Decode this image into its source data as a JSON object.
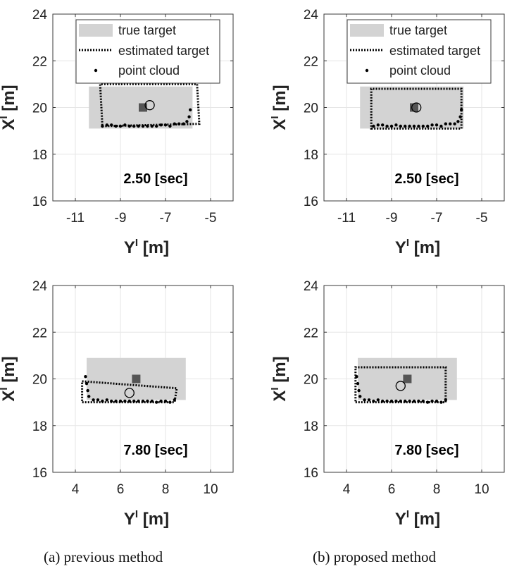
{
  "legend": {
    "true_target": "true target",
    "estimated_target": "estimated target",
    "point_cloud": "point cloud"
  },
  "axes": {
    "xlabel_main": "Y",
    "xlabel_sup": "I",
    "xlabel_unit": "[m]",
    "ylabel_main": "X",
    "ylabel_sup": "I",
    "ylabel_unit": "[m]"
  },
  "captions": {
    "left": "(a)  previous  method",
    "right": "(b)  proposed  method"
  },
  "colors": {
    "true_target_fill": "#d3d3d3",
    "center_marker": "#555555",
    "point_cloud": "#000000",
    "estimated_outline": "#000000"
  },
  "chart_data": [
    {
      "type": "scatter",
      "title": "2.50 [sec]",
      "xlim": [
        -12,
        -4
      ],
      "ylim": [
        16,
        24
      ],
      "xticks": [
        -11,
        -9,
        -7,
        -5
      ],
      "yticks": [
        16,
        18,
        20,
        22,
        24
      ],
      "show_legend": true,
      "true_target": [
        [
          -10.4,
          19.1
        ],
        [
          -5.8,
          19.1
        ],
        [
          -5.8,
          20.9
        ],
        [
          -10.4,
          20.9
        ]
      ],
      "estimated_target": [
        [
          -9.8,
          19.2
        ],
        [
          -5.5,
          19.3
        ],
        [
          -5.6,
          21.0
        ],
        [
          -9.9,
          21.0
        ]
      ],
      "true_center": [
        -8.0,
        20.0
      ],
      "estimated_center": [
        -7.7,
        20.1
      ],
      "point_cloud": [
        [
          -9.8,
          19.2
        ],
        [
          -9.6,
          19.25
        ],
        [
          -9.4,
          19.25
        ],
        [
          -9.2,
          19.2
        ],
        [
          -9.0,
          19.2
        ],
        [
          -8.8,
          19.25
        ],
        [
          -8.6,
          19.2
        ],
        [
          -8.4,
          19.2
        ],
        [
          -8.2,
          19.2
        ],
        [
          -8.0,
          19.2
        ],
        [
          -7.8,
          19.2
        ],
        [
          -7.6,
          19.2
        ],
        [
          -7.4,
          19.2
        ],
        [
          -7.2,
          19.25
        ],
        [
          -7.0,
          19.25
        ],
        [
          -6.8,
          19.2
        ],
        [
          -6.6,
          19.3
        ],
        [
          -6.4,
          19.3
        ],
        [
          -6.2,
          19.3
        ],
        [
          -6.05,
          19.4
        ],
        [
          -5.95,
          19.6
        ],
        [
          -5.9,
          19.9
        ]
      ]
    },
    {
      "type": "scatter",
      "title": "2.50 [sec]",
      "xlim": [
        -12,
        -4
      ],
      "ylim": [
        16,
        24
      ],
      "xticks": [
        -11,
        -9,
        -7,
        -5
      ],
      "yticks": [
        16,
        18,
        20,
        22,
        24
      ],
      "show_legend": true,
      "true_target": [
        [
          -10.4,
          19.1
        ],
        [
          -5.8,
          19.1
        ],
        [
          -5.8,
          20.9
        ],
        [
          -10.4,
          20.9
        ]
      ],
      "estimated_target": [
        [
          -9.9,
          19.1
        ],
        [
          -5.9,
          19.1
        ],
        [
          -5.9,
          20.8
        ],
        [
          -9.9,
          20.8
        ]
      ],
      "true_center": [
        -8.0,
        20.0
      ],
      "estimated_center": [
        -7.9,
        20.0
      ],
      "point_cloud": [
        [
          -9.8,
          19.2
        ],
        [
          -9.6,
          19.25
        ],
        [
          -9.4,
          19.25
        ],
        [
          -9.2,
          19.2
        ],
        [
          -9.0,
          19.2
        ],
        [
          -8.8,
          19.25
        ],
        [
          -8.6,
          19.2
        ],
        [
          -8.4,
          19.2
        ],
        [
          -8.2,
          19.2
        ],
        [
          -8.0,
          19.2
        ],
        [
          -7.8,
          19.2
        ],
        [
          -7.6,
          19.2
        ],
        [
          -7.4,
          19.2
        ],
        [
          -7.2,
          19.25
        ],
        [
          -7.0,
          19.25
        ],
        [
          -6.8,
          19.2
        ],
        [
          -6.6,
          19.3
        ],
        [
          -6.4,
          19.3
        ],
        [
          -6.2,
          19.3
        ],
        [
          -6.05,
          19.4
        ],
        [
          -5.95,
          19.6
        ],
        [
          -5.9,
          19.9
        ]
      ]
    },
    {
      "type": "scatter",
      "title": "7.80 [sec]",
      "xlim": [
        3,
        11
      ],
      "ylim": [
        16,
        24
      ],
      "xticks": [
        4,
        6,
        8,
        10
      ],
      "yticks": [
        16,
        18,
        20,
        22,
        24
      ],
      "show_legend": false,
      "true_target": [
        [
          4.5,
          19.1
        ],
        [
          8.9,
          19.1
        ],
        [
          8.9,
          20.9
        ],
        [
          4.5,
          20.9
        ]
      ],
      "estimated_target": [
        [
          4.3,
          19.9
        ],
        [
          8.5,
          19.6
        ],
        [
          8.4,
          19.0
        ],
        [
          4.3,
          19.0
        ]
      ],
      "true_center": [
        6.7,
        20.0
      ],
      "estimated_center": [
        6.4,
        19.4
      ],
      "point_cloud": [
        [
          4.45,
          20.1
        ],
        [
          4.5,
          19.8
        ],
        [
          4.55,
          19.5
        ],
        [
          4.6,
          19.25
        ],
        [
          4.8,
          19.1
        ],
        [
          5.0,
          19.1
        ],
        [
          5.2,
          19.05
        ],
        [
          5.4,
          19.1
        ],
        [
          5.6,
          19.05
        ],
        [
          5.8,
          19.05
        ],
        [
          6.0,
          19.05
        ],
        [
          6.2,
          19.05
        ],
        [
          6.4,
          19.05
        ],
        [
          6.6,
          19.05
        ],
        [
          6.8,
          19.05
        ],
        [
          7.0,
          19.05
        ],
        [
          7.2,
          19.05
        ],
        [
          7.4,
          19.05
        ],
        [
          7.6,
          19.0
        ],
        [
          7.8,
          19.05
        ],
        [
          8.0,
          19.05
        ],
        [
          8.2,
          19.0
        ],
        [
          8.4,
          19.1
        ]
      ]
    },
    {
      "type": "scatter",
      "title": "7.80 [sec]",
      "xlim": [
        3,
        11
      ],
      "ylim": [
        16,
        24
      ],
      "xticks": [
        4,
        6,
        8,
        10
      ],
      "yticks": [
        16,
        18,
        20,
        22,
        24
      ],
      "show_legend": false,
      "true_target": [
        [
          4.5,
          19.1
        ],
        [
          8.9,
          19.1
        ],
        [
          8.9,
          20.9
        ],
        [
          4.5,
          20.9
        ]
      ],
      "estimated_target": [
        [
          4.4,
          19.0
        ],
        [
          8.4,
          19.0
        ],
        [
          8.4,
          20.5
        ],
        [
          4.4,
          20.5
        ]
      ],
      "true_center": [
        6.7,
        20.0
      ],
      "estimated_center": [
        6.4,
        19.7
      ],
      "point_cloud": [
        [
          4.45,
          20.1
        ],
        [
          4.5,
          19.8
        ],
        [
          4.55,
          19.5
        ],
        [
          4.6,
          19.25
        ],
        [
          4.8,
          19.1
        ],
        [
          5.0,
          19.1
        ],
        [
          5.2,
          19.05
        ],
        [
          5.4,
          19.1
        ],
        [
          5.6,
          19.05
        ],
        [
          5.8,
          19.05
        ],
        [
          6.0,
          19.05
        ],
        [
          6.2,
          19.05
        ],
        [
          6.4,
          19.05
        ],
        [
          6.6,
          19.05
        ],
        [
          6.8,
          19.05
        ],
        [
          7.0,
          19.05
        ],
        [
          7.2,
          19.05
        ],
        [
          7.4,
          19.05
        ],
        [
          7.6,
          19.0
        ],
        [
          7.8,
          19.05
        ],
        [
          8.0,
          19.05
        ],
        [
          8.2,
          19.0
        ],
        [
          8.4,
          19.1
        ]
      ]
    }
  ]
}
